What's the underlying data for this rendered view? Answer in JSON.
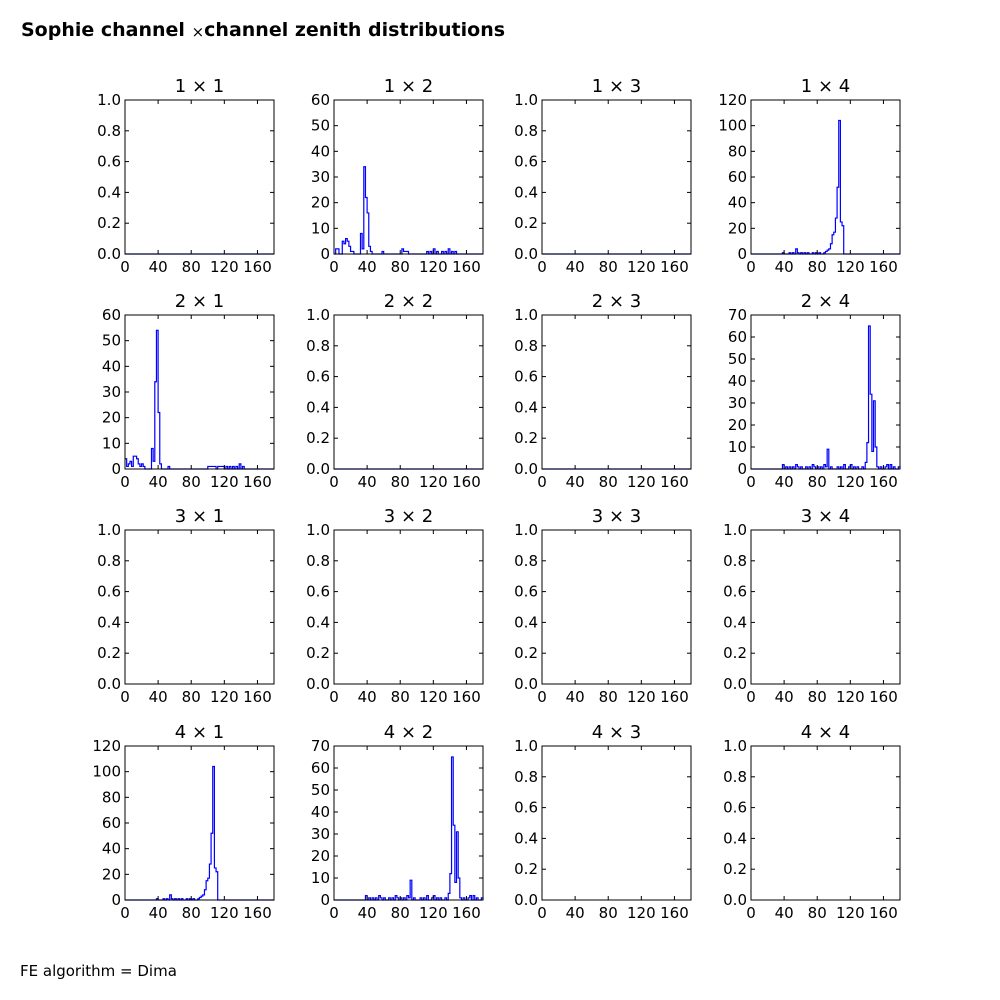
{
  "figure": {
    "title_left": "Sophie channel",
    "title_times": "×",
    "title_right": "channel zenith distributions",
    "footer": "FE algorithm = Dima"
  },
  "style": {
    "line_color": "#0000ff",
    "axis_color": "#000000"
  },
  "chart_data": [
    {
      "type": "line",
      "title": "1  × 1",
      "row": 0,
      "col": 0,
      "xlim": [
        0,
        180
      ],
      "ylim": [
        0,
        1.0
      ],
      "x_ticks": [
        0,
        40,
        80,
        120,
        160
      ],
      "y_ticks": [
        0.0,
        0.2,
        0.4,
        0.6,
        0.8,
        1.0
      ],
      "y_decimals": 1,
      "series": [
        {
          "x": [
            0,
            180
          ],
          "y": [
            0,
            0
          ]
        }
      ]
    },
    {
      "type": "line",
      "title": "1  × 2",
      "row": 0,
      "col": 1,
      "xlim": [
        0,
        180
      ],
      "ylim": [
        0,
        60
      ],
      "x_ticks": [
        0,
        40,
        80,
        120,
        160
      ],
      "y_ticks": [
        0,
        10,
        20,
        30,
        40,
        50,
        60
      ],
      "y_decimals": 0,
      "series": [
        {
          "x": [
            0,
            2,
            4,
            6,
            8,
            10,
            12,
            14,
            16,
            18,
            20,
            22,
            24,
            26,
            28,
            30,
            32,
            34,
            36,
            38,
            40,
            42,
            44,
            46,
            48,
            50,
            52,
            54,
            56,
            58,
            60,
            70,
            80,
            82,
            84,
            90,
            100,
            110,
            112,
            114,
            116,
            118,
            120,
            122,
            124,
            126,
            128,
            130,
            132,
            134,
            136,
            138,
            140,
            142,
            144,
            146,
            148,
            150,
            160,
            170,
            180
          ],
          "y": [
            0,
            2,
            2,
            0,
            0,
            5,
            4,
            6,
            5,
            3,
            1,
            1,
            0,
            0,
            0,
            0,
            8,
            2,
            34,
            22,
            16,
            3,
            1,
            0,
            0,
            0,
            0,
            0,
            0,
            1,
            0,
            0,
            0,
            2,
            1,
            0,
            0,
            0,
            1,
            0,
            1,
            0,
            2,
            0,
            1,
            0,
            0,
            1,
            0,
            1,
            0,
            2,
            0,
            1,
            0,
            1,
            0,
            0,
            0,
            0,
            0
          ]
        }
      ]
    },
    {
      "type": "line",
      "title": "1  × 3",
      "row": 0,
      "col": 2,
      "xlim": [
        0,
        180
      ],
      "ylim": [
        0,
        1.0
      ],
      "x_ticks": [
        0,
        40,
        80,
        120,
        160
      ],
      "y_ticks": [
        0.0,
        0.2,
        0.4,
        0.6,
        0.8,
        1.0
      ],
      "y_decimals": 1,
      "series": [
        {
          "x": [
            0,
            180
          ],
          "y": [
            0,
            0
          ]
        }
      ]
    },
    {
      "type": "line",
      "title": "1  × 4",
      "row": 0,
      "col": 3,
      "xlim": [
        0,
        180
      ],
      "ylim": [
        0,
        120
      ],
      "x_ticks": [
        0,
        40,
        80,
        120,
        160
      ],
      "y_ticks": [
        0,
        20,
        40,
        60,
        80,
        100,
        120
      ],
      "y_decimals": 0,
      "series": [
        {
          "x": [
            0,
            30,
            38,
            40,
            44,
            46,
            48,
            50,
            52,
            54,
            56,
            58,
            60,
            62,
            64,
            66,
            68,
            70,
            72,
            74,
            76,
            78,
            80,
            82,
            84,
            86,
            88,
            90,
            92,
            94,
            96,
            98,
            100,
            102,
            104,
            106,
            108,
            110,
            112,
            114,
            120,
            140,
            160,
            180
          ],
          "y": [
            0,
            0,
            1,
            0,
            0,
            1,
            0,
            1,
            0,
            4,
            1,
            0,
            1,
            0,
            1,
            0,
            1,
            0,
            0,
            1,
            0,
            1,
            0,
            1,
            0,
            0,
            1,
            2,
            3,
            4,
            8,
            15,
            17,
            28,
            52,
            104,
            25,
            22,
            0,
            0,
            0,
            0,
            0,
            0
          ]
        }
      ]
    },
    {
      "type": "line",
      "title": "2  × 1",
      "row": 1,
      "col": 0,
      "xlim": [
        0,
        180
      ],
      "ylim": [
        0,
        60
      ],
      "x_ticks": [
        0,
        40,
        80,
        120,
        160
      ],
      "y_ticks": [
        0,
        10,
        20,
        30,
        40,
        50,
        60
      ],
      "y_decimals": 0,
      "series": [
        {
          "x": [
            0,
            2,
            4,
            6,
            8,
            10,
            12,
            14,
            16,
            18,
            20,
            22,
            24,
            26,
            28,
            30,
            32,
            34,
            36,
            38,
            40,
            42,
            44,
            46,
            48,
            50,
            52,
            54,
            56,
            58,
            60,
            80,
            98,
            100,
            110,
            112,
            120,
            122,
            124,
            126,
            128,
            130,
            132,
            134,
            136,
            138,
            140,
            142,
            144,
            150,
            160,
            180
          ],
          "y": [
            4,
            1,
            2,
            3,
            1,
            5,
            5,
            4,
            2,
            1,
            2,
            1,
            0,
            0,
            0,
            0,
            8,
            3,
            34,
            54,
            22,
            2,
            0,
            0,
            0,
            0,
            1,
            0,
            0,
            0,
            0,
            0,
            0,
            1,
            0,
            1,
            0,
            1,
            0,
            1,
            0,
            1,
            0,
            1,
            0,
            2,
            0,
            1,
            0,
            0,
            0,
            0
          ]
        }
      ]
    },
    {
      "type": "line",
      "title": "2  × 2",
      "row": 1,
      "col": 1,
      "xlim": [
        0,
        180
      ],
      "ylim": [
        0,
        1.0
      ],
      "x_ticks": [
        0,
        40,
        80,
        120,
        160
      ],
      "y_ticks": [
        0.0,
        0.2,
        0.4,
        0.6,
        0.8,
        1.0
      ],
      "y_decimals": 1,
      "series": [
        {
          "x": [
            0,
            180
          ],
          "y": [
            0,
            0
          ]
        }
      ]
    },
    {
      "type": "line",
      "title": "2  × 3",
      "row": 1,
      "col": 2,
      "xlim": [
        0,
        180
      ],
      "ylim": [
        0,
        1.0
      ],
      "x_ticks": [
        0,
        40,
        80,
        120,
        160
      ],
      "y_ticks": [
        0.0,
        0.2,
        0.4,
        0.6,
        0.8,
        1.0
      ],
      "y_decimals": 1,
      "series": [
        {
          "x": [
            0,
            180
          ],
          "y": [
            0,
            0
          ]
        }
      ]
    },
    {
      "type": "line",
      "title": "2  × 4",
      "row": 1,
      "col": 3,
      "xlim": [
        0,
        180
      ],
      "ylim": [
        0,
        70
      ],
      "x_ticks": [
        0,
        40,
        80,
        120,
        160
      ],
      "y_ticks": [
        0,
        10,
        20,
        30,
        40,
        50,
        60,
        70
      ],
      "y_decimals": 0,
      "series": [
        {
          "x": [
            0,
            36,
            38,
            40,
            42,
            44,
            46,
            48,
            50,
            52,
            54,
            56,
            58,
            60,
            62,
            64,
            66,
            68,
            70,
            72,
            74,
            76,
            78,
            80,
            82,
            84,
            86,
            88,
            90,
            92,
            94,
            96,
            98,
            100,
            102,
            104,
            106,
            108,
            110,
            112,
            114,
            116,
            118,
            120,
            122,
            124,
            126,
            128,
            130,
            132,
            134,
            136,
            138,
            140,
            142,
            144,
            146,
            148,
            150,
            152,
            154,
            156,
            158,
            160,
            162,
            164,
            166,
            168,
            170,
            172,
            174,
            176,
            178,
            180
          ],
          "y": [
            0,
            0,
            2,
            0,
            1,
            0,
            1,
            0,
            1,
            0,
            2,
            1,
            0,
            1,
            0,
            0,
            1,
            0,
            1,
            0,
            2,
            1,
            0,
            1,
            0,
            1,
            0,
            2,
            1,
            9,
            0,
            1,
            0,
            0,
            0,
            1,
            0,
            1,
            0,
            2,
            0,
            0,
            1,
            2,
            0,
            1,
            0,
            1,
            0,
            0,
            1,
            0,
            3,
            12,
            65,
            34,
            8,
            31,
            10,
            1,
            0,
            1,
            0,
            0,
            1,
            2,
            0,
            2,
            0,
            1,
            0,
            0,
            1,
            0
          ]
        }
      ]
    },
    {
      "type": "line",
      "title": "3  × 1",
      "row": 2,
      "col": 0,
      "xlim": [
        0,
        180
      ],
      "ylim": [
        0,
        1.0
      ],
      "x_ticks": [
        0,
        40,
        80,
        120,
        160
      ],
      "y_ticks": [
        0.0,
        0.2,
        0.4,
        0.6,
        0.8,
        1.0
      ],
      "y_decimals": 1,
      "series": [
        {
          "x": [],
          "y": []
        }
      ]
    },
    {
      "type": "line",
      "title": "3  × 2",
      "row": 2,
      "col": 1,
      "xlim": [
        0,
        180
      ],
      "ylim": [
        0,
        1.0
      ],
      "x_ticks": [
        0,
        40,
        80,
        120,
        160
      ],
      "y_ticks": [
        0.0,
        0.2,
        0.4,
        0.6,
        0.8,
        1.0
      ],
      "y_decimals": 1,
      "series": [
        {
          "x": [],
          "y": []
        }
      ]
    },
    {
      "type": "line",
      "title": "3  × 3",
      "row": 2,
      "col": 2,
      "xlim": [
        0,
        180
      ],
      "ylim": [
        0,
        1.0
      ],
      "x_ticks": [
        0,
        40,
        80,
        120,
        160
      ],
      "y_ticks": [
        0.0,
        0.2,
        0.4,
        0.6,
        0.8,
        1.0
      ],
      "y_decimals": 1,
      "series": [
        {
          "x": [],
          "y": []
        }
      ]
    },
    {
      "type": "line",
      "title": "3  × 4",
      "row": 2,
      "col": 3,
      "xlim": [
        0,
        180
      ],
      "ylim": [
        0,
        1.0
      ],
      "x_ticks": [
        0,
        40,
        80,
        120,
        160
      ],
      "y_ticks": [
        0.0,
        0.2,
        0.4,
        0.6,
        0.8,
        1.0
      ],
      "y_decimals": 1,
      "series": [
        {
          "x": [],
          "y": []
        }
      ]
    },
    {
      "type": "line",
      "title": "4  × 1",
      "row": 3,
      "col": 0,
      "xlim": [
        0,
        180
      ],
      "ylim": [
        0,
        120
      ],
      "x_ticks": [
        0,
        40,
        80,
        120,
        160
      ],
      "y_ticks": [
        0,
        20,
        40,
        60,
        80,
        100,
        120
      ],
      "y_decimals": 0,
      "series": [
        {
          "x": [
            0,
            30,
            38,
            40,
            44,
            46,
            48,
            50,
            52,
            54,
            56,
            58,
            60,
            62,
            64,
            66,
            68,
            70,
            72,
            74,
            76,
            78,
            80,
            82,
            84,
            86,
            88,
            90,
            92,
            94,
            96,
            98,
            100,
            102,
            104,
            106,
            108,
            110,
            112,
            114,
            120,
            140,
            160,
            180
          ],
          "y": [
            0,
            0,
            1,
            0,
            0,
            1,
            0,
            1,
            0,
            4,
            1,
            0,
            1,
            0,
            1,
            0,
            1,
            0,
            0,
            1,
            0,
            1,
            0,
            1,
            0,
            0,
            1,
            2,
            3,
            4,
            8,
            15,
            17,
            28,
            52,
            104,
            25,
            22,
            0,
            0,
            0,
            0,
            0,
            0
          ]
        }
      ]
    },
    {
      "type": "line",
      "title": "4  × 2",
      "row": 3,
      "col": 1,
      "xlim": [
        0,
        180
      ],
      "ylim": [
        0,
        70
      ],
      "x_ticks": [
        0,
        40,
        80,
        120,
        160
      ],
      "y_ticks": [
        0,
        10,
        20,
        30,
        40,
        50,
        60,
        70
      ],
      "y_decimals": 0,
      "series": [
        {
          "x": [
            0,
            36,
            38,
            40,
            42,
            44,
            46,
            48,
            50,
            52,
            54,
            56,
            58,
            60,
            62,
            64,
            66,
            68,
            70,
            72,
            74,
            76,
            78,
            80,
            82,
            84,
            86,
            88,
            90,
            92,
            94,
            96,
            98,
            100,
            102,
            104,
            106,
            108,
            110,
            112,
            114,
            116,
            118,
            120,
            122,
            124,
            126,
            128,
            130,
            132,
            134,
            136,
            138,
            140,
            142,
            144,
            146,
            148,
            150,
            152,
            154,
            156,
            158,
            160,
            162,
            164,
            166,
            168,
            170,
            172,
            174,
            176,
            178,
            180
          ],
          "y": [
            0,
            0,
            2,
            0,
            1,
            0,
            1,
            0,
            1,
            0,
            2,
            1,
            0,
            1,
            0,
            0,
            1,
            0,
            1,
            0,
            2,
            1,
            0,
            1,
            0,
            1,
            0,
            2,
            1,
            9,
            0,
            1,
            0,
            0,
            0,
            1,
            0,
            1,
            0,
            2,
            0,
            0,
            1,
            2,
            0,
            1,
            0,
            1,
            0,
            0,
            1,
            0,
            3,
            12,
            65,
            34,
            8,
            31,
            10,
            1,
            0,
            1,
            0,
            0,
            1,
            2,
            0,
            2,
            0,
            1,
            0,
            0,
            1,
            0
          ]
        }
      ]
    },
    {
      "type": "line",
      "title": "4  × 3",
      "row": 3,
      "col": 2,
      "xlim": [
        0,
        180
      ],
      "ylim": [
        0,
        1.0
      ],
      "x_ticks": [
        0,
        40,
        80,
        120,
        160
      ],
      "y_ticks": [
        0.0,
        0.2,
        0.4,
        0.6,
        0.8,
        1.0
      ],
      "y_decimals": 1,
      "series": [
        {
          "x": [],
          "y": []
        }
      ]
    },
    {
      "type": "line",
      "title": "4  × 4",
      "row": 3,
      "col": 3,
      "xlim": [
        0,
        180
      ],
      "ylim": [
        0,
        1.0
      ],
      "x_ticks": [
        0,
        40,
        80,
        120,
        160
      ],
      "y_ticks": [
        0.0,
        0.2,
        0.4,
        0.6,
        0.8,
        1.0
      ],
      "y_decimals": 1,
      "series": [
        {
          "x": [],
          "y": []
        }
      ]
    }
  ]
}
